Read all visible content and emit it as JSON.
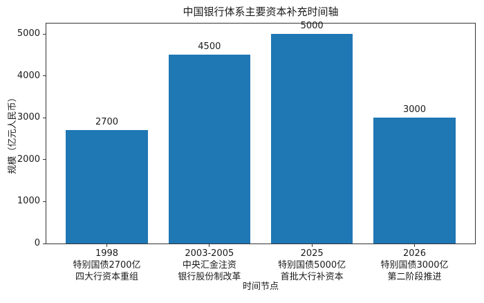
{
  "figure": {
    "background": "#ffffff",
    "spine_color": "#333333",
    "text_color": "#1a1a1a"
  },
  "chart_data": {
    "type": "bar",
    "title": "中国银行体系主要资本补充时间轴",
    "xlabel": "时间节点",
    "ylabel": "规模（亿元人民币）",
    "categories": [
      "1998\n特别国债2700亿\n四大行资本重组",
      "2003-2005\n中央汇金注资\n银行股份制改革",
      "2025\n特别国债5000亿\n首批大行补资本",
      "2026\n特别国债3000亿\n第二阶段推进"
    ],
    "values": [
      2700,
      4500,
      5000,
      3000
    ],
    "value_labels": [
      "2700",
      "4500",
      "5000",
      "3000"
    ],
    "bar_color": "#1f77b4",
    "bar_width": 0.8,
    "xlim": [
      -0.59,
      3.59
    ],
    "ylim": [
      0,
      5250
    ],
    "yticks": [
      0,
      1000,
      2000,
      3000,
      4000,
      5000
    ],
    "grid": false,
    "legend": null
  }
}
